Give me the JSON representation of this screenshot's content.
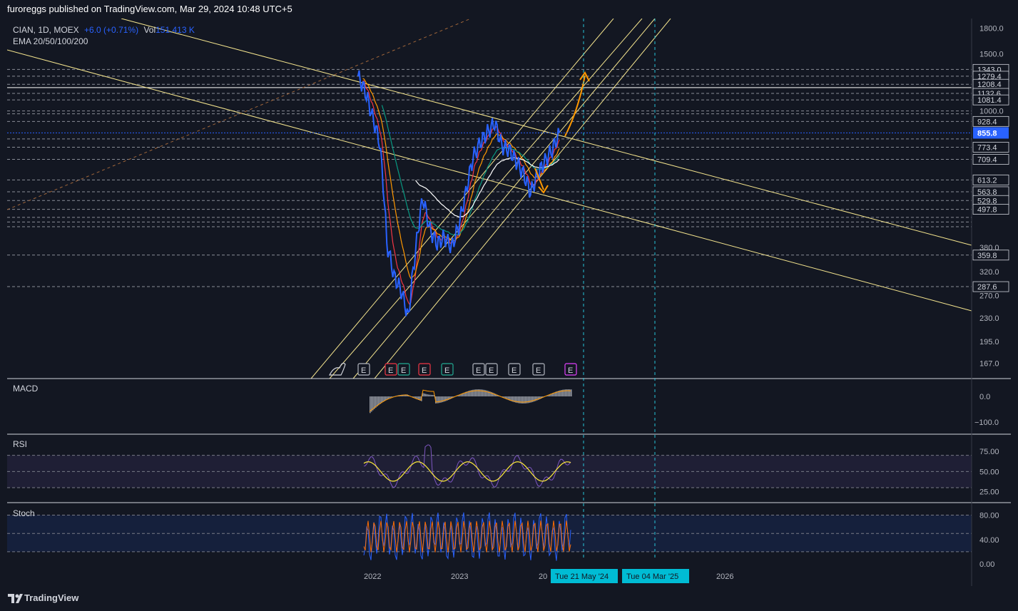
{
  "header": {
    "publisher": "furoreggs published on TradingView.com, Mar 29, 2024 10:48 UTC+5"
  },
  "legend": {
    "symbol": "CIAN, 1D, MOEX",
    "change": "+6.0 (+0.71%)",
    "volume_label": "Vol",
    "volume_value": "151.413 K",
    "ema": "EMA 20/50/100/200"
  },
  "panes": {
    "macd": "MACD",
    "rsi": "RSI",
    "stoch": "Stoch"
  },
  "footer": {
    "brand": "TradingView"
  },
  "colors": {
    "background": "#131722",
    "price": "#2962ff",
    "ema20": "#f23645",
    "ema50": "#ff9800",
    "ema100": "#089981",
    "ema200": "#ffffff",
    "channel": "#f5e58e",
    "arrow": "#ff9800",
    "marker": "#22ab94",
    "rsi_line": "#7e57c2",
    "rsi_ma": "#ffeb3b",
    "stoch_k": "#2962ff",
    "stoch_d": "#ff6d00",
    "current_price_tag": "#2962ff"
  },
  "chart_data": [
    {
      "type": "line",
      "title": "",
      "symbol": "CIAN",
      "interval": "1D",
      "exchange": "MOEX",
      "y_scale": "log",
      "ylim": [
        160,
        1850
      ],
      "y_ticks": [
        "1800.0",
        "1500.0",
        "1000.0",
        "380.0",
        "320.0",
        "270.0",
        "230.0",
        "195.0",
        "167.0"
      ],
      "x_ticks": [
        "2022",
        "2023",
        "20",
        "2026"
      ],
      "current_price": "855.8",
      "level_labels": [
        "1343.0",
        "1279.4",
        "1208.4",
        "1132.6",
        "1081.4",
        "928.4",
        "773.4",
        "709.4",
        "613.2",
        "563.8",
        "529.8",
        "497.8",
        "359.8",
        "287.6"
      ],
      "date_markers": [
        "Tue 21 May '24",
        "Tue 04 Mar '25"
      ],
      "earnings_markers": [
        "E",
        "E",
        "E",
        "E",
        "E",
        "E",
        "E",
        "E",
        "E",
        "E"
      ],
      "series": [
        {
          "x": [
            "2021-11",
            "2021-12",
            "2022-01",
            "2022-02",
            "2022-03",
            "2022-04",
            "2022-05",
            "2022-06",
            "2022-07",
            "2022-08",
            "2022-09",
            "2022-10",
            "2022-11",
            "2022-12",
            "2023-01",
            "2023-02",
            "2023-03",
            "2023-04",
            "2023-05",
            "2023-06",
            "2023-07",
            "2023-08",
            "2023-09",
            "2023-10",
            "2023-11",
            "2023-12",
            "2024-01",
            "2024-02",
            "2024-03"
          ],
          "values": [
            1280,
            1150,
            960,
            800,
            390,
            310,
            280,
            230,
            370,
            540,
            430,
            390,
            410,
            380,
            440,
            560,
            720,
            800,
            860,
            920,
            780,
            760,
            700,
            640,
            560,
            640,
            700,
            760,
            855.8
          ]
        }
      ]
    },
    {
      "type": "bar",
      "title": "",
      "indicator": "MACD",
      "y_ticks": [
        "0.0",
        "−100.0"
      ]
    },
    {
      "type": "line",
      "title": "",
      "indicator": "RSI",
      "ylim": [
        15,
        90
      ],
      "y_ticks": [
        "75.00",
        "50.00",
        "25.00"
      ]
    },
    {
      "type": "line",
      "title": "",
      "indicator": "Stoch",
      "ylim": [
        0,
        90
      ],
      "y_ticks": [
        "80.00",
        "40.00",
        "0.00"
      ]
    }
  ]
}
